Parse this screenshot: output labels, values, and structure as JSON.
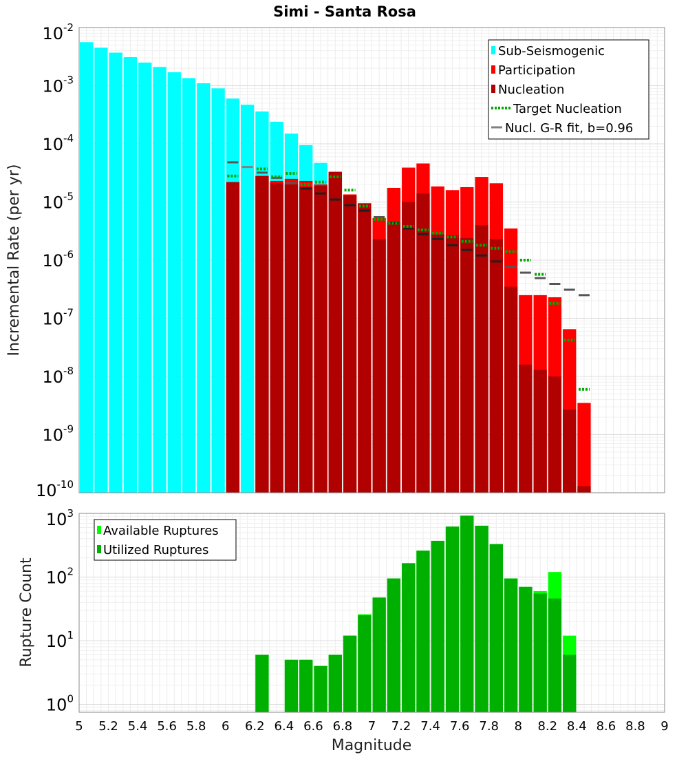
{
  "chart_data": [
    {
      "type": "bar",
      "title": "Simi - Santa Rosa",
      "xlabel": "",
      "ylabel": "Incremental Rate (per yr)",
      "yscale": "log",
      "xlim": [
        5,
        9
      ],
      "ylim": [
        1e-10,
        0.01
      ],
      "y_tick_exponents": [
        -2,
        -3,
        -4,
        -5,
        -6,
        -7,
        -8,
        -9,
        -10
      ],
      "legend_position": "top-right",
      "legend": [
        {
          "label": "Sub-Seismogenic",
          "color": "#00ffff",
          "style": "bar"
        },
        {
          "label": "Participation",
          "color": "#ff0000",
          "style": "bar"
        },
        {
          "label": "Nucleation",
          "color": "#b00000",
          "style": "bar"
        },
        {
          "label": "Target Nucleation",
          "color": "#00aa00",
          "style": "dotted"
        },
        {
          "label": "Nucl. G-R fit, b=0.96",
          "color": "#808080",
          "style": "line"
        }
      ],
      "magnitudes": [
        5.05,
        5.15,
        5.25,
        5.35,
        5.45,
        5.55,
        5.65,
        5.75,
        5.85,
        5.95,
        6.05,
        6.15,
        6.25,
        6.35,
        6.45,
        6.55,
        6.65,
        6.75,
        6.85,
        6.95,
        7.05,
        7.15,
        7.25,
        7.35,
        7.45,
        7.55,
        7.65,
        7.75,
        7.85,
        7.95,
        8.05,
        8.15,
        8.25,
        8.35,
        8.45
      ],
      "series": [
        {
          "name": "Sub-Seismogenic",
          "color": "#00ffff",
          "values": [
            0.0056,
            0.0045,
            0.0037,
            0.0031,
            0.0025,
            0.0021,
            0.0017,
            0.00135,
            0.0011,
            0.0009,
            0.0006,
            0.00047,
            0.00036,
            0.00024,
            0.00015,
            9.5e-05,
            4.7e-05,
            null,
            null,
            null,
            null,
            null,
            null,
            null,
            null,
            null,
            null,
            null,
            null,
            null,
            null,
            null,
            null,
            null,
            null
          ]
        },
        {
          "name": "Participation",
          "color": "#ff0000",
          "values": [
            null,
            null,
            null,
            null,
            null,
            null,
            null,
            null,
            null,
            null,
            2.2e-05,
            null,
            2.8e-05,
            2.3e-05,
            2.5e-05,
            2.3e-05,
            2e-05,
            3.3e-05,
            1.35e-05,
            9.5e-06,
            5.3e-06,
            1.75e-05,
            3.9e-05,
            4.6e-05,
            1.85e-05,
            1.6e-05,
            1.8e-05,
            2.7e-05,
            2.1e-05,
            3.5e-06,
            2.5e-07,
            2.5e-07,
            2.3e-07,
            6.5e-08,
            3.5e-09
          ]
        },
        {
          "name": "Nucleation",
          "color": "#b00000",
          "values": [
            null,
            null,
            null,
            null,
            null,
            null,
            null,
            null,
            null,
            null,
            2.2e-05,
            null,
            2.8e-05,
            2.1e-05,
            2e-05,
            1.8e-05,
            1.9e-05,
            3.3e-05,
            1.3e-05,
            9.5e-06,
            2.3e-06,
            4.5e-06,
            1e-05,
            1.4e-05,
            2.8e-06,
            2.7e-06,
            2.4e-06,
            4e-06,
            2.3e-06,
            3.5e-07,
            1.6e-08,
            1.3e-08,
            1e-08,
            2.7e-09,
            1.3e-10
          ]
        },
        {
          "name": "Target Nucleation",
          "color": "#00aa00",
          "values": [
            null,
            null,
            null,
            null,
            null,
            null,
            null,
            null,
            null,
            null,
            2.8e-05,
            null,
            3.7e-05,
            2.7e-05,
            3.1e-05,
            2e-05,
            2.2e-05,
            2.7e-05,
            1.6e-05,
            8.5e-06,
            5e-06,
            4.3e-06,
            3.8e-06,
            3.3e-06,
            2.9e-06,
            2.5e-06,
            2.1e-06,
            1.8e-06,
            1.6e-06,
            1.4e-06,
            1e-06,
            5.7e-07,
            1.8e-07,
            4.2e-08,
            6e-09
          ]
        },
        {
          "name": "Nucl. G-R fit, b=0.96",
          "color": "#808080",
          "values": [
            null,
            null,
            null,
            null,
            null,
            null,
            null,
            null,
            null,
            null,
            4.8e-05,
            4e-05,
            3.2e-05,
            2.6e-05,
            2.1e-05,
            1.7e-05,
            1.4e-05,
            1.1e-05,
            8.8e-06,
            7.1e-06,
            5.5e-06,
            4.4e-06,
            3.5e-06,
            2.8e-06,
            2.3e-06,
            1.8e-06,
            1.5e-06,
            1.2e-06,
            9.5e-07,
            7.7e-07,
            6.1e-07,
            4.9e-07,
            3.9e-07,
            3.1e-07,
            2.5e-07
          ]
        }
      ]
    },
    {
      "type": "bar",
      "title": "",
      "xlabel": "Magnitude",
      "ylabel": "Rupture Count",
      "yscale": "log",
      "xlim": [
        5,
        9
      ],
      "ylim": [
        0.75,
        1000
      ],
      "y_tick_exponents": [
        3,
        2,
        1,
        0
      ],
      "x_ticks": [
        "5",
        "5.2",
        "5.4",
        "5.6",
        "5.8",
        "6",
        "6.2",
        "6.4",
        "6.6",
        "6.8",
        "7",
        "7.2",
        "7.4",
        "7.6",
        "7.8",
        "8",
        "8.2",
        "8.4",
        "8.6",
        "8.8",
        "9"
      ],
      "legend_position": "top-left",
      "legend": [
        {
          "label": "Available Ruptures",
          "color": "#00ff00"
        },
        {
          "label": "Utilized Ruptures",
          "color": "#00b000"
        }
      ],
      "magnitudes": [
        6.25,
        6.35,
        6.45,
        6.55,
        6.65,
        6.75,
        6.85,
        6.95,
        7.05,
        7.15,
        7.25,
        7.35,
        7.45,
        7.55,
        7.65,
        7.75,
        7.85,
        7.95,
        8.05,
        8.15,
        8.25,
        8.35
      ],
      "series": [
        {
          "name": "Available Ruptures",
          "color": "#00ff00",
          "values": [
            6,
            null,
            5,
            5,
            4,
            6,
            12,
            26,
            48,
            95,
            165,
            260,
            370,
            620,
            920,
            640,
            330,
            95,
            70,
            60,
            120,
            12
          ]
        },
        {
          "name": "Utilized Ruptures",
          "color": "#00b000",
          "values": [
            6,
            null,
            5,
            5,
            4,
            6,
            12,
            25,
            47,
            95,
            165,
            260,
            370,
            620,
            920,
            640,
            330,
            95,
            70,
            55,
            46,
            6
          ]
        }
      ]
    }
  ]
}
